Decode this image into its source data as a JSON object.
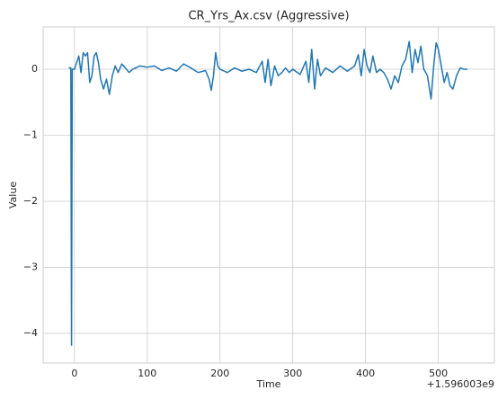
{
  "chart_data": {
    "type": "line",
    "title": "CR_Yrs_Ax.csv (Aggressive)",
    "x_label": "Time",
    "y_label": "Value",
    "x_offset_label": "+1.596003e9",
    "x": [
      -8,
      -5,
      -4,
      -3,
      0,
      3,
      6,
      9,
      12,
      15,
      18,
      21,
      24,
      27,
      30,
      33,
      36,
      40,
      44,
      48,
      52,
      56,
      60,
      65,
      70,
      75,
      80,
      90,
      100,
      110,
      120,
      130,
      140,
      150,
      160,
      170,
      180,
      185,
      188,
      191,
      194,
      197,
      200,
      210,
      220,
      230,
      240,
      250,
      258,
      262,
      266,
      270,
      275,
      280,
      285,
      290,
      295,
      300,
      310,
      318,
      322,
      326,
      330,
      334,
      338,
      345,
      355,
      365,
      375,
      385,
      390,
      394,
      398,
      402,
      406,
      410,
      415,
      420,
      425,
      430,
      435,
      440,
      445,
      450,
      455,
      460,
      464,
      468,
      472,
      476,
      480,
      485,
      490,
      494,
      497,
      500,
      504,
      508,
      512,
      516,
      520,
      525,
      530,
      535,
      540
    ],
    "series": [
      {
        "name": "Value",
        "color": "#1f77b4",
        "values": [
          0.02,
          0.02,
          -4.18,
          0.0,
          0.0,
          0.1,
          0.2,
          -0.05,
          0.25,
          0.2,
          0.25,
          -0.2,
          -0.1,
          0.2,
          0.25,
          0.1,
          -0.15,
          -0.3,
          -0.15,
          -0.38,
          -0.1,
          0.05,
          -0.05,
          0.08,
          0.02,
          -0.05,
          0.0,
          0.05,
          0.03,
          0.05,
          -0.02,
          0.02,
          -0.03,
          0.08,
          0.02,
          -0.05,
          -0.02,
          -0.15,
          -0.32,
          -0.1,
          0.25,
          0.05,
          0.0,
          -0.05,
          0.02,
          -0.03,
          0.0,
          -0.05,
          0.12,
          -0.2,
          0.15,
          -0.25,
          0.05,
          -0.1,
          -0.05,
          0.02,
          -0.05,
          0.0,
          -0.08,
          0.12,
          -0.2,
          0.3,
          -0.3,
          0.15,
          -0.1,
          0.02,
          -0.05,
          0.05,
          -0.03,
          0.05,
          0.22,
          -0.1,
          0.3,
          0.05,
          -0.05,
          0.2,
          -0.05,
          0.0,
          -0.05,
          -0.15,
          -0.3,
          -0.1,
          -0.2,
          0.05,
          0.15,
          0.42,
          -0.05,
          0.3,
          0.1,
          0.35,
          0.0,
          -0.1,
          -0.45,
          0.1,
          0.4,
          0.3,
          0.05,
          -0.2,
          -0.05,
          -0.25,
          -0.3,
          -0.1,
          0.02,
          0.0,
          0.0
        ]
      }
    ],
    "xlim": [
      -43,
      577
    ],
    "ylim": [
      -4.45,
      0.64
    ],
    "xticks": [
      0,
      100,
      200,
      300,
      400,
      500
    ],
    "yticks": [
      {
        "value": -4,
        "label": "−4"
      },
      {
        "value": -3,
        "label": "−3"
      },
      {
        "value": -2,
        "label": "−2"
      },
      {
        "value": -1,
        "label": "−1"
      },
      0
    ],
    "grid": true
  }
}
